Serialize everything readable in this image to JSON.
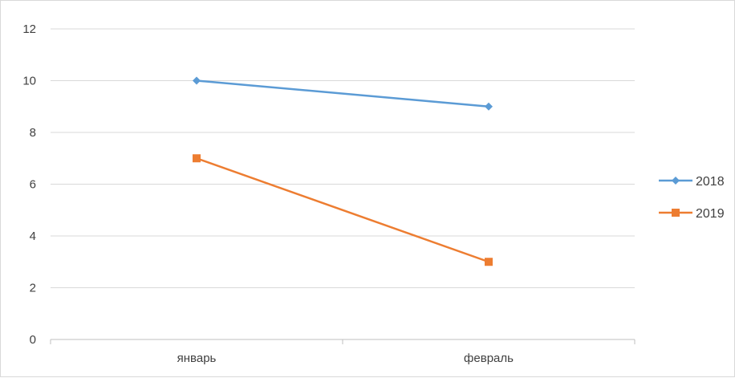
{
  "chart_data": {
    "type": "line",
    "categories": [
      "январь",
      "февраль"
    ],
    "series": [
      {
        "name": "2018",
        "values": [
          10,
          9
        ],
        "color": "#5b9bd5",
        "marker": "diamond"
      },
      {
        "name": "2019",
        "values": [
          7,
          3
        ],
        "color": "#ed7d31",
        "marker": "square"
      }
    ],
    "yticks": [
      "0",
      "2",
      "4",
      "6",
      "8",
      "10",
      "12"
    ],
    "ylim": [
      0,
      12
    ],
    "grid": true,
    "legend": "right",
    "gridColor": "#d9d9d9",
    "axisColor": "#bfbfbf"
  }
}
